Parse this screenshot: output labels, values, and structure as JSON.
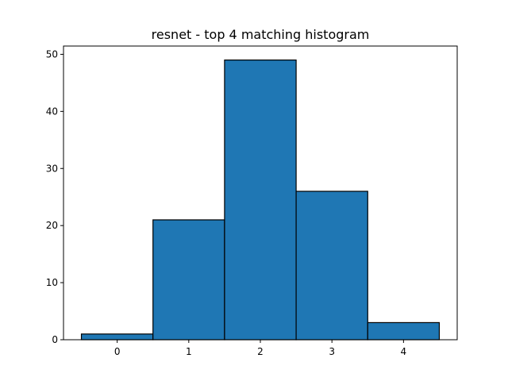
{
  "chart_data": {
    "type": "bar",
    "title": "resnet - top 4 matching histogram",
    "xlabel": "",
    "ylabel": "",
    "categories": [
      "0",
      "1",
      "2",
      "3",
      "4"
    ],
    "values": [
      1,
      21,
      49,
      26,
      3
    ],
    "xlim": [
      -0.75,
      4.75
    ],
    "ylim": [
      0,
      51.45
    ],
    "xticks": [
      "0",
      "1",
      "2",
      "3",
      "4"
    ],
    "yticks": [
      "0",
      "10",
      "20",
      "30",
      "40",
      "50"
    ],
    "bar_color": "#1f77b4",
    "edge_color": "#000000",
    "grid": false,
    "legend": "none"
  }
}
